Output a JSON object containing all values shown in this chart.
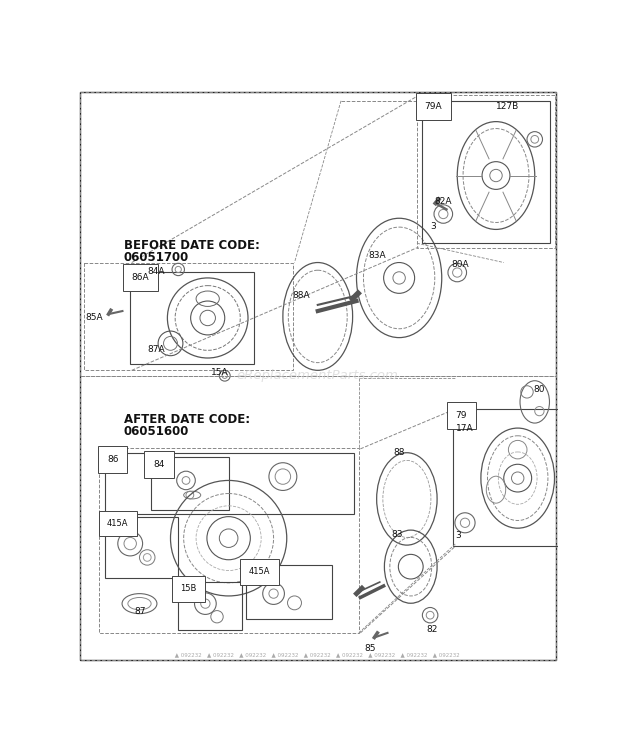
{
  "bg": "#ffffff",
  "watermark": "eReplacementParts.com",
  "before_label": "BEFORE DATE CODE:",
  "before_code": "06051700",
  "after_label": "AFTER DATE CODE:",
  "after_code": "06051600",
  "line_color": "#555555",
  "dashed_color": "#888888",
  "label_color": "#111111",
  "box_color": "#444444"
}
